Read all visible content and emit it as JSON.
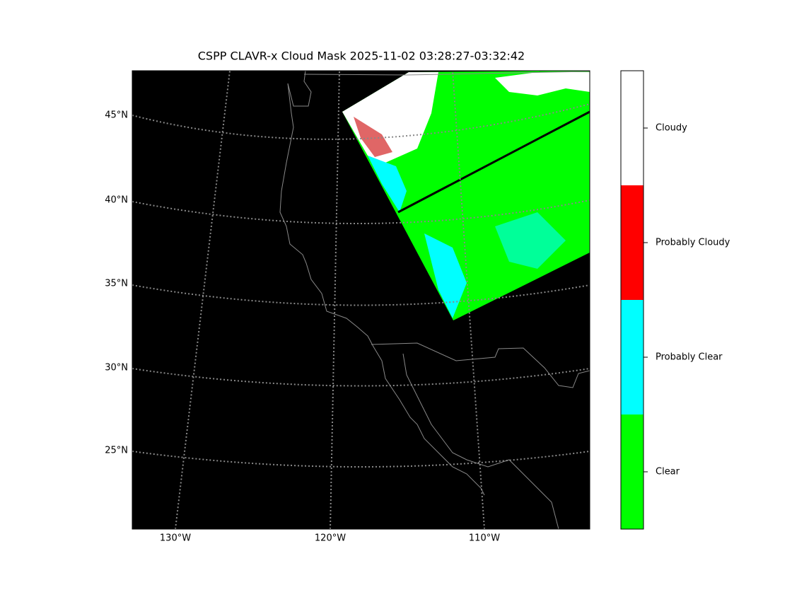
{
  "title": "CSPP CLAVR-x Cloud Mask 2025-11-02 03:28:27-03:32:42",
  "latitude_labels": [
    "45°N",
    "40°N",
    "35°N",
    "30°N",
    "25°N"
  ],
  "longitude_labels": [
    "130°W",
    "120°W",
    "110°W"
  ],
  "legend": {
    "items": [
      {
        "label": "Cloudy",
        "color": "#ffffff"
      },
      {
        "label": "Probably Cloudy",
        "color": "#ff0000"
      },
      {
        "label": "Probably Clear",
        "color": "#00ffff"
      },
      {
        "label": "Clear",
        "color": "#00ff00"
      }
    ]
  }
}
